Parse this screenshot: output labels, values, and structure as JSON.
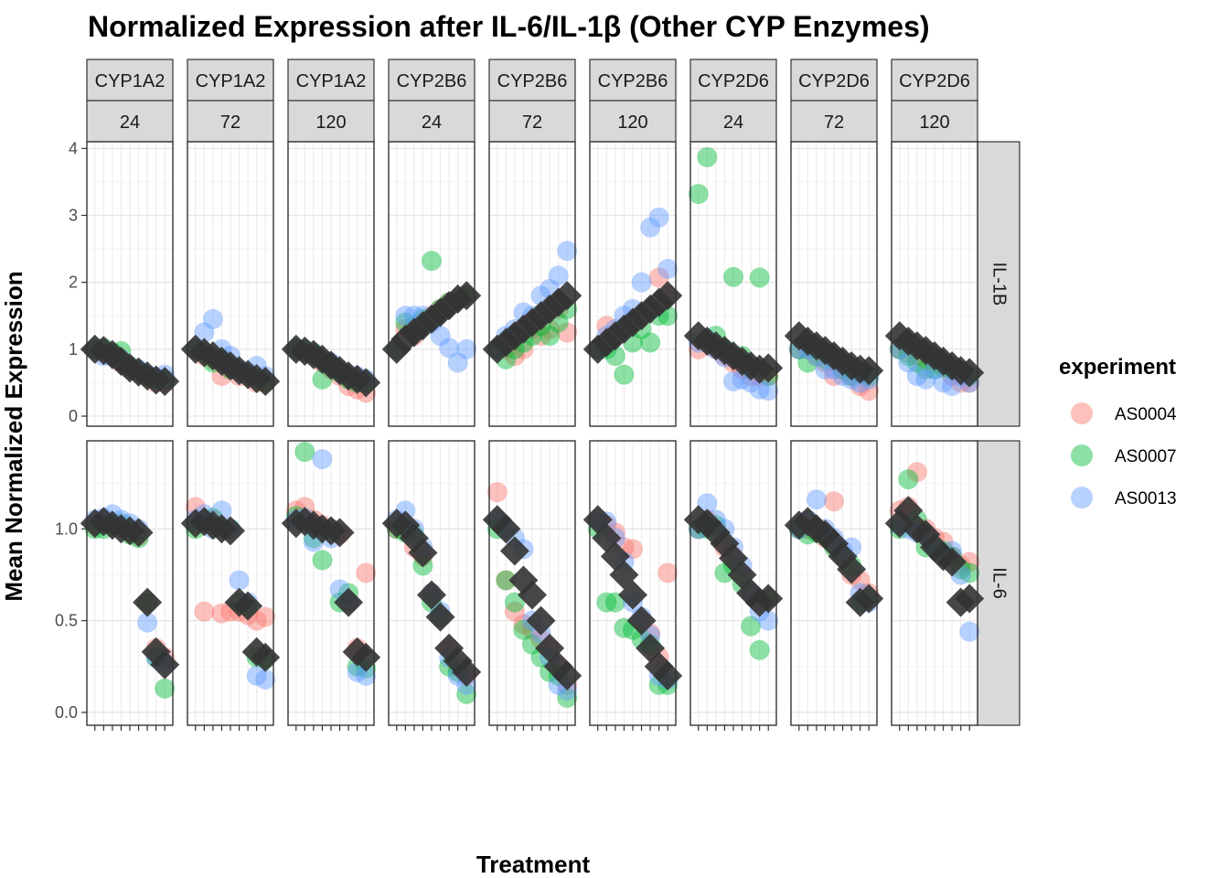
{
  "chart_data": {
    "type": "scatter",
    "title": "Normalized Expression after IL-6/IL-1β (Other CYP Enzymes)",
    "xlabel": "Treatment",
    "ylabel": "Mean Normalized Expression",
    "facet_columns": [
      {
        "enzyme": "CYP1A2",
        "time": "24"
      },
      {
        "enzyme": "CYP1A2",
        "time": "72"
      },
      {
        "enzyme": "CYP1A2",
        "time": "120"
      },
      {
        "enzyme": "CYP2B6",
        "time": "24"
      },
      {
        "enzyme": "CYP2B6",
        "time": "72"
      },
      {
        "enzyme": "CYP2B6",
        "time": "120"
      },
      {
        "enzyme": "CYP2D6",
        "time": "24"
      },
      {
        "enzyme": "CYP2D6",
        "time": "72"
      },
      {
        "enzyme": "CYP2D6",
        "time": "120"
      }
    ],
    "facet_rows": [
      {
        "label": "IL-1B",
        "ylim": [
          -0.15,
          4.1
        ],
        "yticks": [
          0,
          1,
          2,
          3,
          4
        ]
      },
      {
        "label": "IL-6",
        "ylim": [
          -0.07,
          1.48
        ],
        "yticks": [
          0.0,
          0.5,
          1.0
        ]
      }
    ],
    "legend": {
      "title": "experiment",
      "position": "right",
      "items": [
        {
          "name": "AS0004",
          "color": "#F8766D"
        },
        {
          "name": "AS0007",
          "color": "#00BA38"
        },
        {
          "name": "AS0013",
          "color": "#619CFF"
        }
      ]
    },
    "mean_marker_color": "#333333",
    "grid": true,
    "n_treatments": 9,
    "panels": [
      [
        {
          "mean": [
            1.0,
            0.98,
            0.92,
            0.82,
            0.72,
            0.66,
            0.6,
            0.54,
            0.52
          ],
          "AS0004": [
            1.0,
            0.95,
            0.9,
            0.8,
            0.7,
            0.65,
            0.58,
            0.5,
            0.5
          ],
          "AS0007": [
            1.0,
            1.02,
            0.95,
            0.97,
            0.75,
            0.68,
            0.6,
            0.55,
            0.55
          ],
          "AS0013": [
            1.0,
            0.9,
            0.9,
            0.85,
            0.72,
            0.7,
            0.62,
            0.58,
            0.62
          ]
        },
        {
          "mean": [
            1.0,
            0.95,
            0.9,
            0.82,
            0.75,
            0.68,
            0.62,
            0.56,
            0.52
          ],
          "AS0004": [
            1.0,
            0.9,
            0.85,
            0.6,
            0.7,
            0.6,
            0.6,
            0.5,
            0.5
          ],
          "AS0007": [
            1.0,
            0.95,
            0.8,
            0.85,
            0.7,
            0.68,
            0.6,
            0.55,
            0.5
          ],
          "AS0013": [
            1.0,
            1.25,
            1.45,
            1.0,
            0.9,
            0.7,
            0.65,
            0.75,
            0.6
          ]
        },
        {
          "mean": [
            1.0,
            0.97,
            0.92,
            0.85,
            0.76,
            0.68,
            0.6,
            0.55,
            0.5
          ],
          "AS0004": [
            1.0,
            0.95,
            0.9,
            0.8,
            0.7,
            0.6,
            0.45,
            0.4,
            0.35
          ],
          "AS0007": [
            1.0,
            1.0,
            0.95,
            0.55,
            0.75,
            0.65,
            0.55,
            0.5,
            0.5
          ],
          "AS0013": [
            1.0,
            0.95,
            0.9,
            0.85,
            0.8,
            0.7,
            0.6,
            0.6,
            0.55
          ]
        },
        {
          "mean": [
            1.0,
            1.15,
            1.25,
            1.35,
            1.45,
            1.55,
            1.65,
            1.75,
            1.8
          ],
          "AS0004": [
            1.0,
            1.3,
            1.2,
            1.4,
            1.5,
            1.6,
            1.7,
            1.75,
            1.8
          ],
          "AS0007": [
            1.0,
            1.4,
            1.35,
            1.45,
            2.32,
            1.6,
            1.7,
            1.75,
            1.8
          ],
          "AS0013": [
            1.0,
            1.5,
            1.5,
            1.5,
            1.4,
            1.2,
            1.02,
            0.8,
            1.0
          ]
        },
        {
          "mean": [
            1.0,
            1.1,
            1.2,
            1.3,
            1.4,
            1.5,
            1.6,
            1.7,
            1.8
          ],
          "AS0004": [
            1.0,
            1.0,
            0.9,
            1.0,
            1.3,
            1.2,
            1.3,
            1.6,
            1.25
          ],
          "AS0007": [
            1.0,
            0.85,
            1.0,
            1.1,
            1.2,
            1.35,
            1.2,
            1.4,
            1.6
          ],
          "AS0013": [
            1.0,
            1.2,
            1.3,
            1.55,
            1.5,
            1.8,
            1.9,
            2.1,
            2.47
          ]
        },
        {
          "mean": [
            1.0,
            1.1,
            1.2,
            1.3,
            1.4,
            1.5,
            1.6,
            1.7,
            1.8
          ],
          "AS0004": [
            1.0,
            1.35,
            1.2,
            1.3,
            1.4,
            1.5,
            1.6,
            2.07,
            1.8
          ],
          "AS0007": [
            1.0,
            1.0,
            0.9,
            0.62,
            1.1,
            1.3,
            1.1,
            1.5,
            1.5
          ],
          "AS0013": [
            1.0,
            1.2,
            1.3,
            1.5,
            1.6,
            2.0,
            2.82,
            2.97,
            2.2
          ]
        },
        {
          "mean": [
            1.2,
            1.12,
            1.05,
            0.98,
            0.9,
            0.82,
            0.75,
            0.7,
            0.72
          ],
          "AS0004": [
            1.0,
            1.1,
            1.0,
            0.9,
            0.8,
            0.7,
            0.6,
            0.6,
            0.6
          ],
          "AS0007": [
            3.32,
            3.87,
            1.2,
            1.0,
            2.08,
            0.9,
            0.7,
            2.07,
            0.6
          ],
          "AS0013": [
            1.1,
            1.15,
            1.0,
            0.88,
            0.52,
            0.55,
            0.5,
            0.4,
            0.38
          ]
        },
        {
          "mean": [
            1.2,
            1.12,
            1.05,
            0.98,
            0.9,
            0.82,
            0.75,
            0.7,
            0.68
          ],
          "AS0004": [
            1.0,
            1.0,
            0.9,
            0.8,
            0.6,
            0.7,
            0.6,
            0.45,
            0.38
          ],
          "AS0007": [
            1.0,
            0.8,
            1.0,
            0.85,
            0.85,
            0.7,
            0.6,
            0.65,
            0.6
          ],
          "AS0013": [
            1.0,
            1.0,
            0.9,
            0.7,
            0.7,
            0.6,
            0.55,
            0.5,
            0.55
          ]
        },
        {
          "mean": [
            1.2,
            1.12,
            1.05,
            0.98,
            0.9,
            0.82,
            0.75,
            0.68,
            0.65
          ],
          "AS0004": [
            1.0,
            0.95,
            0.9,
            0.85,
            0.8,
            0.75,
            0.6,
            0.5,
            0.5
          ],
          "AS0007": [
            1.0,
            0.9,
            0.8,
            0.7,
            0.7,
            0.72,
            0.7,
            0.68,
            0.6
          ],
          "AS0013": [
            1.0,
            0.8,
            0.6,
            0.55,
            0.7,
            0.5,
            0.45,
            0.6,
            0.5
          ]
        }
      ],
      [
        {
          "mean": [
            1.03,
            1.04,
            1.02,
            1.0,
            0.99,
            0.98,
            0.6,
            0.33,
            0.26
          ],
          "AS0004": [
            1.02,
            1.05,
            1.03,
            1.0,
            0.98,
            0.96,
            0.6,
            0.35,
            0.3
          ],
          "AS0007": [
            1.0,
            1.0,
            1.02,
            1.03,
            0.97,
            0.95,
            0.6,
            0.3,
            0.13
          ],
          "AS0013": [
            1.05,
            1.06,
            1.08,
            1.05,
            1.03,
            1.0,
            0.49,
            0.3,
            0.27
          ]
        },
        {
          "mean": [
            1.03,
            1.04,
            1.02,
            1.0,
            0.99,
            0.6,
            0.58,
            0.33,
            0.3
          ],
          "AS0004": [
            1.12,
            0.55,
            1.05,
            0.54,
            0.55,
            0.55,
            0.53,
            0.5,
            0.52
          ],
          "AS0007": [
            1.0,
            1.05,
            1.06,
            1.0,
            1.0,
            0.6,
            0.58,
            0.3,
            0.29
          ],
          "AS0013": [
            1.05,
            1.08,
            1.0,
            1.1,
            1.0,
            0.72,
            0.6,
            0.2,
            0.18
          ]
        },
        {
          "mean": [
            1.03,
            1.04,
            1.02,
            1.0,
            0.99,
            0.98,
            0.6,
            0.33,
            0.3
          ],
          "AS0004": [
            1.1,
            1.12,
            1.05,
            1.02,
            1.0,
            0.97,
            0.6,
            0.35,
            0.76
          ],
          "AS0007": [
            1.07,
            1.42,
            0.95,
            0.83,
            1.0,
            0.6,
            0.65,
            0.25,
            0.24
          ],
          "AS0013": [
            1.05,
            1.06,
            0.93,
            1.38,
            0.95,
            0.67,
            0.6,
            0.22,
            0.2
          ]
        },
        {
          "mean": [
            1.03,
            1.02,
            0.95,
            0.87,
            0.64,
            0.52,
            0.35,
            0.28,
            0.22
          ],
          "AS0004": [
            1.0,
            1.0,
            0.9,
            0.85,
            0.65,
            0.52,
            0.35,
            0.25,
            0.2
          ],
          "AS0007": [
            1.0,
            0.98,
            0.97,
            0.8,
            0.6,
            0.52,
            0.25,
            0.22,
            0.1
          ],
          "AS0013": [
            1.05,
            1.1,
            1.0,
            0.9,
            0.65,
            0.55,
            0.3,
            0.2,
            0.15
          ]
        },
        {
          "mean": [
            1.05,
            1.0,
            0.88,
            0.72,
            0.64,
            0.5,
            0.35,
            0.25,
            0.2
          ],
          "AS0004": [
            1.2,
            0.72,
            0.55,
            0.48,
            0.45,
            0.4,
            0.35,
            0.25,
            0.15
          ],
          "AS0007": [
            1.0,
            0.72,
            0.6,
            0.45,
            0.37,
            0.3,
            0.22,
            0.2,
            0.08
          ],
          "AS0013": [
            1.05,
            1.0,
            0.95,
            0.89,
            0.5,
            0.43,
            0.3,
            0.15,
            0.12
          ]
        },
        {
          "mean": [
            1.05,
            0.95,
            0.85,
            0.75,
            0.64,
            0.5,
            0.35,
            0.25,
            0.2
          ],
          "AS0004": [
            1.05,
            1.02,
            0.98,
            0.9,
            0.89,
            0.5,
            0.43,
            0.3,
            0.76
          ],
          "AS0007": [
            1.0,
            0.6,
            0.6,
            0.46,
            0.45,
            0.4,
            0.37,
            0.15,
            0.15
          ],
          "AS0013": [
            1.05,
            1.04,
            0.95,
            0.82,
            0.6,
            0.52,
            0.42,
            0.2,
            0.18
          ]
        },
        {
          "mean": [
            1.05,
            1.03,
            0.98,
            0.92,
            0.84,
            0.75,
            0.65,
            0.6,
            0.62
          ],
          "AS0004": [
            1.0,
            1.05,
            1.0,
            0.9,
            0.85,
            0.75,
            0.65,
            0.6,
            0.62
          ],
          "AS0007": [
            1.0,
            1.0,
            1.02,
            0.76,
            0.8,
            0.7,
            0.47,
            0.34,
            0.62
          ],
          "AS0013": [
            1.0,
            1.14,
            1.05,
            1.0,
            0.9,
            0.8,
            0.65,
            0.55,
            0.5
          ]
        },
        {
          "mean": [
            1.02,
            1.04,
            1.0,
            0.97,
            0.92,
            0.85,
            0.78,
            0.6,
            0.62
          ],
          "AS0004": [
            1.0,
            1.0,
            1.0,
            0.95,
            1.15,
            0.85,
            0.75,
            0.72,
            0.65
          ],
          "AS0007": [
            1.0,
            0.97,
            0.98,
            0.96,
            0.9,
            0.85,
            0.8,
            0.6,
            0.62
          ],
          "AS0013": [
            1.0,
            1.05,
            1.16,
            1.0,
            0.95,
            0.88,
            0.9,
            0.65,
            0.6
          ]
        },
        {
          "mean": [
            1.03,
            1.1,
            1.0,
            0.97,
            0.9,
            0.85,
            0.82,
            0.6,
            0.62
          ],
          "AS0004": [
            1.1,
            1.12,
            1.31,
            1.0,
            0.95,
            0.93,
            0.85,
            0.8,
            0.82
          ],
          "AS0007": [
            1.0,
            1.27,
            1.05,
            0.9,
            0.9,
            0.88,
            0.85,
            0.78,
            0.76
          ],
          "AS0013": [
            1.02,
            1.0,
            0.98,
            0.97,
            0.9,
            0.85,
            0.88,
            0.75,
            0.44
          ]
        }
      ]
    ]
  }
}
